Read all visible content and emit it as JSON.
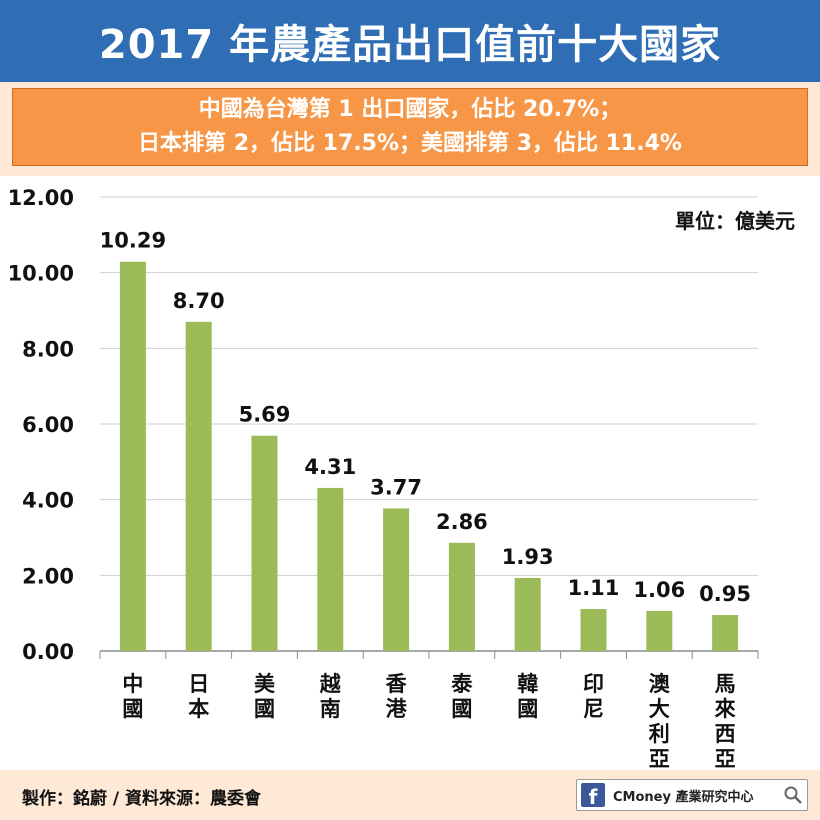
{
  "header": {
    "title": "2017 年農產品出口值前十大國家",
    "subtitle_line1": "中國為台灣第 1 出口國家，佔比 20.7%；",
    "subtitle_line2": "日本排第 2，佔比 17.5%；美國排第 3，佔比 11.4%"
  },
  "chart_data": {
    "type": "bar",
    "title": "2017 年農產品出口值前十大國家",
    "unit_label": "單位：億美元",
    "categories": [
      "中國",
      "日本",
      "美國",
      "越南",
      "香港",
      "泰國",
      "韓國",
      "印尼",
      "澳大利亞",
      "馬來西亞"
    ],
    "values": [
      10.29,
      8.7,
      5.69,
      4.31,
      3.77,
      2.86,
      1.93,
      1.11,
      1.06,
      0.95
    ],
    "value_labels": [
      "10.29",
      "8.70",
      "5.69",
      "4.31",
      "3.77",
      "2.86",
      "1.93",
      "1.11",
      "1.06",
      "0.95"
    ],
    "ylim": [
      0,
      12
    ],
    "yticks": [
      "0.00",
      "2.00",
      "4.00",
      "6.00",
      "8.00",
      "10.00",
      "12.00"
    ],
    "ytick_values": [
      0,
      2,
      4,
      6,
      8,
      10,
      12
    ],
    "grid": true,
    "bar_color": "#9bbb59",
    "xlabel": "",
    "ylabel": ""
  },
  "footer": {
    "credit": "製作：銘蔚 / 資料來源：農委會",
    "brand": "CMoney 產業研究中心",
    "fb_letter": "f"
  },
  "colors": {
    "title_bg": "#2f6db5",
    "subtitle_bg": "#f79646",
    "page_bg": "#fde9d6",
    "plot_bg": "#ffffff"
  }
}
